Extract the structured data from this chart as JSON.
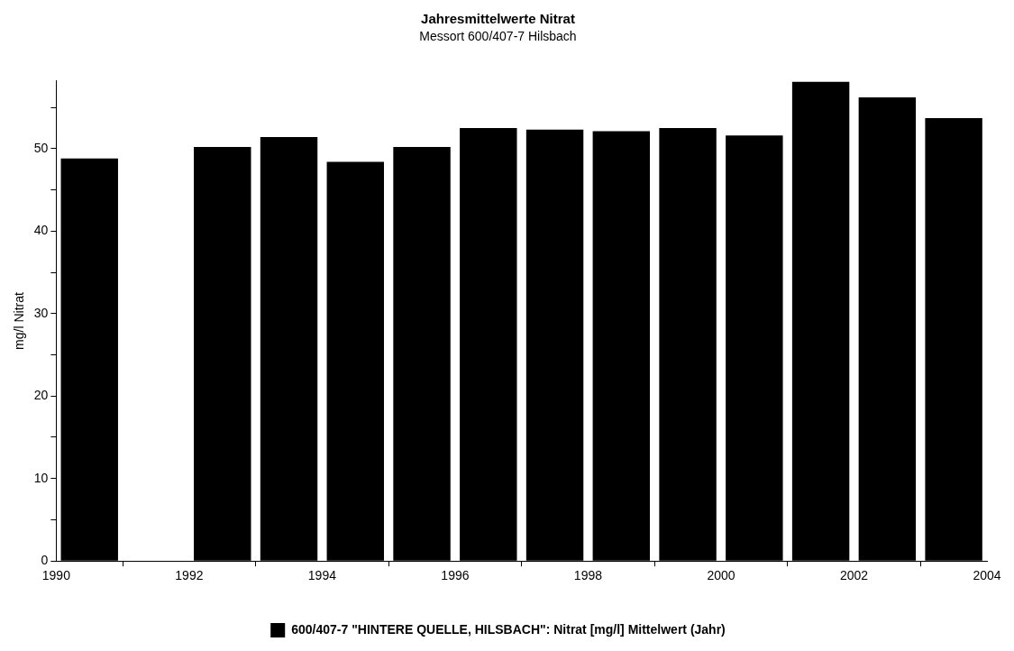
{
  "chart_data": {
    "type": "bar",
    "title": "Jahresmittelwerte Nitrat",
    "subtitle": "Messort 600/407-7 Hilsbach",
    "ylabel": "mg/l Nitrat",
    "x": [
      1990.5,
      1991.5,
      1992.5,
      1993.5,
      1994.5,
      1995.5,
      1996.5,
      1997.5,
      1998.5,
      1999.5,
      2000.5,
      2001.5,
      2002.5,
      2003.5
    ],
    "series": [
      {
        "name": "600/407-7 \"HINTERE QUELLE, HILSBACH\": Nitrat [mg/l] Mittelwert (Jahr)",
        "color": "#000000",
        "values": [
          48.8,
          null,
          50.2,
          51.4,
          48.4,
          50.2,
          52.5,
          52.3,
          52.1,
          52.5,
          51.6,
          58.1,
          56.2,
          53.7
        ]
      }
    ],
    "xlim": [
      1990,
      2004
    ],
    "xticks": [
      1990,
      1992,
      1994,
      1996,
      1998,
      2000,
      2002,
      2004
    ],
    "ylim": [
      0,
      58.2
    ],
    "yticks": [
      0,
      {
        "value": 5,
        "label": null
      },
      10,
      {
        "value": 15,
        "label": null
      },
      20,
      {
        "value": 25,
        "label": null
      },
      30,
      {
        "value": 35,
        "label": null
      },
      40,
      {
        "value": 45,
        "label": null
      },
      50,
      {
        "value": 55,
        "label": null
      }
    ],
    "grid": false,
    "legend": "bottom"
  }
}
